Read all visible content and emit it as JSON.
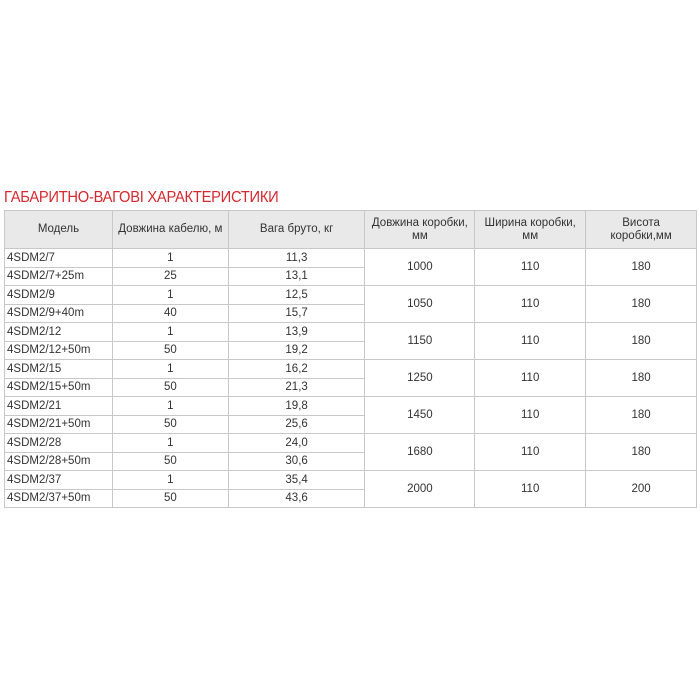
{
  "title": "ГАБАРИТНО-ВАГОВІ ХАРАКТЕРИСТИКИ",
  "colors": {
    "title": "#d7282f",
    "header_bg": "#e9e9e9",
    "border": "#c8c8c8"
  },
  "headers": [
    "Модель",
    "Довжина кабелю, м",
    "Вага бруто, кг",
    "Довжина коробки, мм",
    "Ширина коробки, мм",
    "Висота коробки,мм"
  ],
  "groups": [
    {
      "rows": [
        [
          "4SDM2/7",
          "1",
          "11,3"
        ],
        [
          "4SDM2/7+25m",
          "25",
          "13,1"
        ]
      ],
      "box": [
        "1000",
        "110",
        "180"
      ]
    },
    {
      "rows": [
        [
          "4SDM2/9",
          "1",
          "12,5"
        ],
        [
          "4SDM2/9+40m",
          "40",
          "15,7"
        ]
      ],
      "box": [
        "1050",
        "110",
        "180"
      ]
    },
    {
      "rows": [
        [
          "4SDM2/12",
          "1",
          "13,9"
        ],
        [
          "4SDM2/12+50m",
          "50",
          "19,2"
        ]
      ],
      "box": [
        "1150",
        "110",
        "180"
      ]
    },
    {
      "rows": [
        [
          "4SDM2/15",
          "1",
          "16,2"
        ],
        [
          "4SDM2/15+50m",
          "50",
          "21,3"
        ]
      ],
      "box": [
        "1250",
        "110",
        "180"
      ]
    },
    {
      "rows": [
        [
          "4SDM2/21",
          "1",
          "19,8"
        ],
        [
          "4SDM2/21+50m",
          "50",
          "25,6"
        ]
      ],
      "box": [
        "1450",
        "110",
        "180"
      ]
    },
    {
      "rows": [
        [
          "4SDM2/28",
          "1",
          "24,0"
        ],
        [
          "4SDM2/28+50m",
          "50",
          "30,6"
        ]
      ],
      "box": [
        "1680",
        "110",
        "180"
      ]
    },
    {
      "rows": [
        [
          "4SDM2/37",
          "1",
          "35,4"
        ],
        [
          "4SDM2/37+50m",
          "50",
          "43,6"
        ]
      ],
      "box": [
        "2000",
        "110",
        "200"
      ]
    }
  ]
}
